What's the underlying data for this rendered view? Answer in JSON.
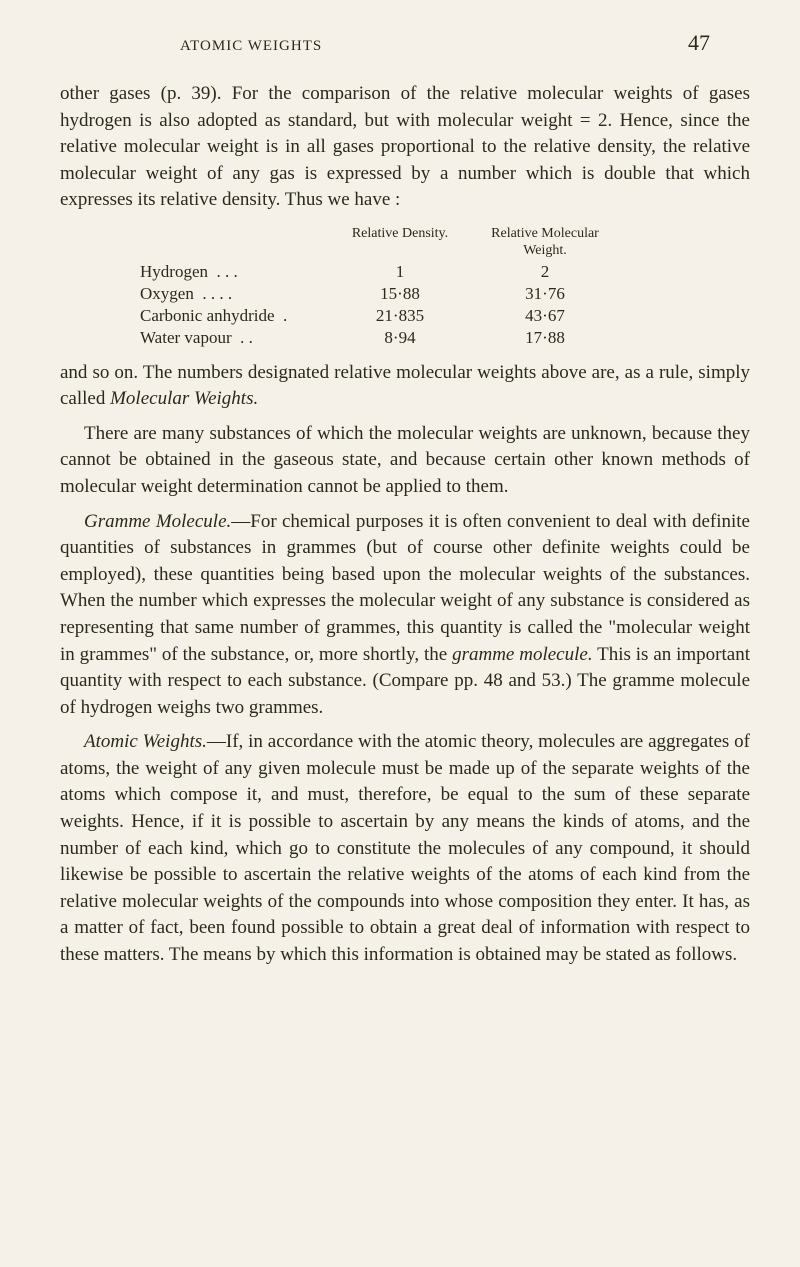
{
  "header": {
    "running_title": "ATOMIC WEIGHTS",
    "page_number": "47"
  },
  "para1": "other gases (p. 39). For the comparison of the relative molecular weights of gases hydrogen is also adopted as standard, but with molecular weight = 2. Hence, since the relative molecular weight is in all gases proportional to the relative density, the relative molecular weight of any gas is expressed by a number which is double that which expresses its relative density. Thus we have :",
  "table": {
    "headers": {
      "density": "Relative Density.",
      "weight_line1": "Relative Molecular",
      "weight_line2": "Weight."
    },
    "rows": [
      {
        "label": "Hydrogen",
        "dots": ". . .",
        "density": "1",
        "weight": "2"
      },
      {
        "label": "Oxygen",
        "dots": ". . . .",
        "density": "15·88",
        "weight": "31·76"
      },
      {
        "label": "Carbonic anhydride",
        "dots": ".",
        "density": "21·835",
        "weight": "43·67"
      },
      {
        "label": "Water vapour",
        "dots": ". .",
        "density": "8·94",
        "weight": "17·88"
      }
    ]
  },
  "para2_a": "and so on. The numbers designated relative molecular weights above are, as a rule, simply called ",
  "para2_b": "Molecular Weights.",
  "para3": "There are many substances of which the molecular weights are unknown, because they cannot be obtained in the gaseous state, and because certain other known methods of molecular weight determination cannot be applied to them.",
  "para4_a": "Gramme Molecule.",
  "para4_b": "—For chemical purposes it is often convenient to deal with definite quantities of substances in grammes (but of course other definite weights could be employed), these quantities being based upon the molecular weights of the substances. When the number which expresses the molecular weight of any substance is considered as representing that same number of grammes, this quantity is called the \"molecular weight in grammes\" of the substance, or, more shortly, the ",
  "para4_c": "gramme molecule.",
  "para4_d": " This is an important quantity with respect to each substance. (Compare pp. 48 and 53.) The gramme molecule of hydrogen weighs two grammes.",
  "para5_a": "Atomic Weights.",
  "para5_b": "—If, in accordance with the atomic theory, molecules are aggregates of atoms, the weight of any given molecule must be made up of the separate weights of the atoms which compose it, and must, therefore, be equal to the sum of these separate weights. Hence, if it is possible to ascertain by any means the kinds of atoms, and the number of each kind, which go to constitute the molecules of any compound, it should likewise be possible to ascertain the relative weights of the atoms of each kind from the relative molecular weights of the compounds into whose composition they enter. It has, as a matter of fact, been found possible to obtain a great deal of information with respect to these matters. The means by which this information is obtained may be stated as follows.",
  "colors": {
    "background": "#f5f0e8",
    "text": "#2a2a1a",
    "side_text": "#6a5a3a"
  },
  "typography": {
    "body_fontsize": 19,
    "table_fontsize": 17,
    "header_fontsize": 15,
    "pagenum_fontsize": 22
  }
}
